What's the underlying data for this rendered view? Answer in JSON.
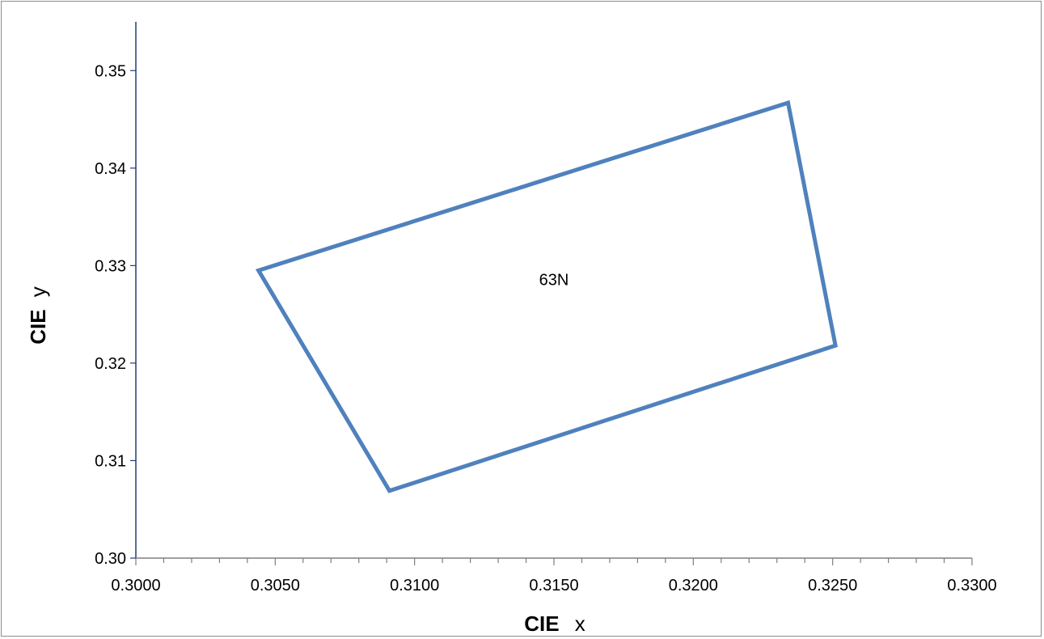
{
  "chart_data": {
    "type": "line",
    "title": "",
    "xlabel": {
      "bold": "CIE",
      "sym": "x"
    },
    "ylabel": {
      "bold": "CIE",
      "sym": "y"
    },
    "xlim": [
      0.3,
      0.33
    ],
    "ylim": [
      0.3,
      0.355
    ],
    "x_ticks": [
      {
        "value": 0.3,
        "label": "0.3000"
      },
      {
        "value": 0.305,
        "label": "0.3050"
      },
      {
        "value": 0.31,
        "label": "0.3100"
      },
      {
        "value": 0.315,
        "label": "0.3150"
      },
      {
        "value": 0.32,
        "label": "0.3200"
      },
      {
        "value": 0.325,
        "label": "0.3250"
      },
      {
        "value": 0.33,
        "label": "0.3300"
      }
    ],
    "x_minor_step": 0.001,
    "y_ticks": [
      {
        "value": 0.3,
        "label": "0.30"
      },
      {
        "value": 0.31,
        "label": "0.31"
      },
      {
        "value": 0.32,
        "label": "0.32"
      },
      {
        "value": 0.33,
        "label": "0.33"
      },
      {
        "value": 0.34,
        "label": "0.34"
      },
      {
        "value": 0.35,
        "label": "0.35"
      }
    ],
    "grid": false,
    "legend": "none",
    "series": [
      {
        "color": "#4f81bd",
        "closed": true,
        "x": [
          0.3044,
          0.3234,
          0.3251,
          0.3091
        ],
        "y": [
          0.3295,
          0.3467,
          0.3218,
          0.3069
        ]
      }
    ],
    "annotations": [
      {
        "text": "63N",
        "x": 0.315,
        "y": 0.328
      }
    ]
  }
}
